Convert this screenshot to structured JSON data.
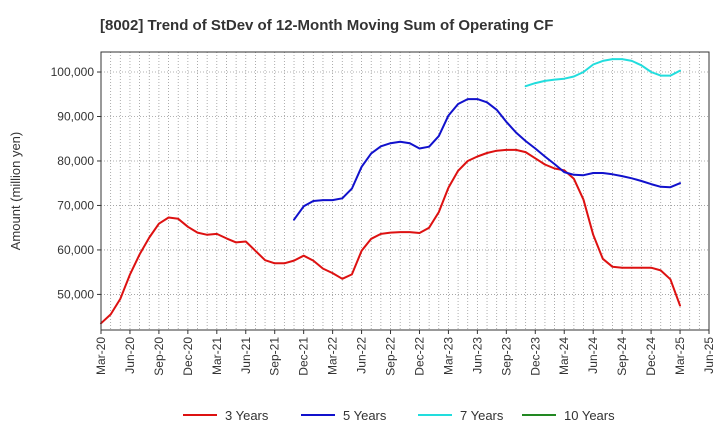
{
  "chart_data": {
    "type": "line",
    "title": "[8002]  Trend of StDev of 12-Month Moving Sum of Operating CF",
    "xlabel": "",
    "ylabel": "Amount (million yen)",
    "ylim": [
      42000,
      104500
    ],
    "yticks": [
      50000,
      60000,
      70000,
      80000,
      90000,
      100000
    ],
    "ytick_labels": [
      "50,000",
      "60,000",
      "70,000",
      "80,000",
      "90,000",
      "100,000"
    ],
    "x_start": "Mar-20",
    "x_months": 63,
    "xtick_labels": [
      "Mar-20",
      "Jun-20",
      "Sep-20",
      "Dec-20",
      "Mar-21",
      "Jun-21",
      "Sep-21",
      "Dec-21",
      "Mar-22",
      "Jun-22",
      "Sep-22",
      "Dec-22",
      "Mar-23",
      "Jun-23",
      "Sep-23",
      "Dec-23",
      "Mar-24",
      "Jun-24",
      "Sep-24",
      "Dec-24",
      "Mar-25",
      "Jun-25"
    ],
    "grid": true,
    "legend_position": "bottom",
    "series": [
      {
        "name": "3 Years",
        "color": "#dd1111",
        "start_index": 0,
        "values": [
          43500,
          45500,
          49000,
          54500,
          59000,
          62800,
          65900,
          67300,
          67000,
          65200,
          63900,
          63400,
          63600,
          62600,
          61700,
          61900,
          59800,
          57700,
          57000,
          57000,
          57600,
          58700,
          57600,
          55800,
          54800,
          53500,
          54500,
          59800,
          62500,
          63600,
          63900,
          64000,
          64000,
          63800,
          65000,
          68500,
          74000,
          77800,
          80000,
          81000,
          81800,
          82300,
          82500,
          82500,
          82000,
          80600,
          79200,
          78300,
          77900,
          76000,
          71300,
          63400,
          58000,
          56200,
          56000,
          56000,
          56000,
          56000,
          55400,
          53400,
          47500
        ]
      },
      {
        "name": "5 Years",
        "color": "#1111cc",
        "start_index": 20,
        "values": [
          66800,
          69800,
          71000,
          71200,
          71200,
          71600,
          73800,
          78700,
          81700,
          83300,
          84000,
          84300,
          84000,
          82800,
          83200,
          85600,
          90200,
          92800,
          93900,
          93900,
          93200,
          91500,
          88800,
          86400,
          84500,
          82800,
          81000,
          79300,
          77500,
          76900,
          76800,
          77300,
          77300,
          77000,
          76600,
          76100,
          75500,
          74800,
          74200,
          74100,
          75000
        ]
      },
      {
        "name": "7 Years",
        "color": "#22dddd",
        "start_index": 44,
        "values": [
          96800,
          97500,
          98000,
          98300,
          98500,
          99000,
          100000,
          101700,
          102500,
          102900,
          102900,
          102500,
          101500,
          100000,
          99200,
          99200,
          100300
        ]
      },
      {
        "name": "10 Years",
        "color": "#228822",
        "start_index": 0,
        "values": []
      }
    ]
  }
}
